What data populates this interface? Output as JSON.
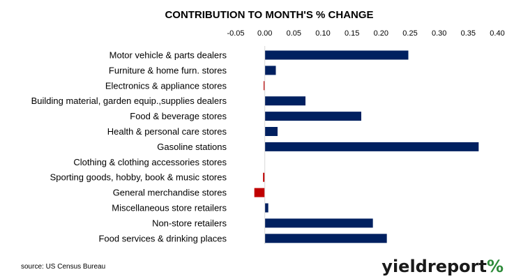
{
  "chart_data": {
    "type": "bar",
    "orientation": "horizontal",
    "title": "CONTRIBUTION TO MONTH'S % CHANGE",
    "xlabel": "",
    "ylabel": "",
    "xlim": [
      -0.05,
      0.4
    ],
    "ticks": [
      "-0.05",
      "0.00",
      "0.05",
      "0.10",
      "0.15",
      "0.20",
      "0.25",
      "0.30",
      "0.35",
      "0.40"
    ],
    "tick_values": [
      -0.05,
      0.0,
      0.05,
      0.1,
      0.15,
      0.2,
      0.25,
      0.3,
      0.35,
      0.4
    ],
    "axis_position": "top",
    "grid": false,
    "categories": [
      "Motor vehicle & parts dealers",
      "Furniture & home furn. stores",
      "Electronics & appliance stores",
      "Building material, garden equip.,supplies dealers",
      "Food & beverage stores",
      "Health & personal care stores",
      "Gasoline stations",
      "Clothing & clothing accessories stores",
      "Sporting goods, hobby, book & music stores",
      "General merchandise stores",
      "Miscellaneous store retailers",
      "Non-store retailers",
      "Food services & drinking places"
    ],
    "values": [
      0.247,
      0.019,
      -0.002,
      0.07,
      0.166,
      0.022,
      0.368,
      0.0,
      -0.003,
      -0.018,
      0.006,
      0.186,
      0.21
    ],
    "colors": {
      "positive": "#002060",
      "negative": "#c00000"
    }
  },
  "source": "source: US Census Bureau",
  "brand": {
    "text_main": "yieldreport",
    "text_symbol": "%",
    "color_main": "#1a1a1a",
    "color_green": "#2e8b3a",
    "color_red": "#c00000"
  }
}
